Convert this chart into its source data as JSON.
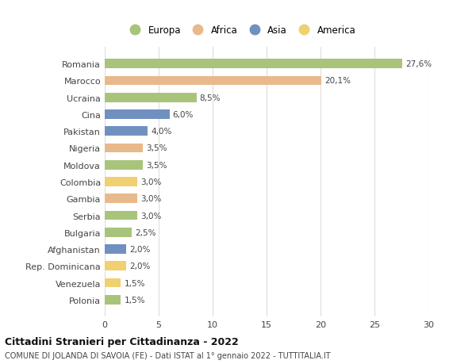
{
  "categories": [
    "Polonia",
    "Venezuela",
    "Rep. Dominicana",
    "Afghanistan",
    "Bulgaria",
    "Serbia",
    "Gambia",
    "Colombia",
    "Moldova",
    "Nigeria",
    "Pakistan",
    "Cina",
    "Ucraina",
    "Marocco",
    "Romania"
  ],
  "values": [
    1.5,
    1.5,
    2.0,
    2.0,
    2.5,
    3.0,
    3.0,
    3.0,
    3.5,
    3.5,
    4.0,
    6.0,
    8.5,
    20.1,
    27.6
  ],
  "labels": [
    "1,5%",
    "1,5%",
    "2,0%",
    "2,0%",
    "2,5%",
    "3,0%",
    "3,0%",
    "3,0%",
    "3,5%",
    "3,5%",
    "4,0%",
    "6,0%",
    "8,5%",
    "20,1%",
    "27,6%"
  ],
  "continents": [
    "Europa",
    "America",
    "America",
    "Asia",
    "Europa",
    "Europa",
    "Africa",
    "America",
    "Europa",
    "Africa",
    "Asia",
    "Asia",
    "Europa",
    "Africa",
    "Europa"
  ],
  "continent_colors": {
    "Europa": "#a8c47a",
    "Africa": "#e8b98a",
    "Asia": "#7090c0",
    "America": "#f0d070"
  },
  "legend_order": [
    "Europa",
    "Africa",
    "Asia",
    "America"
  ],
  "title": "Cittadini Stranieri per Cittadinanza - 2022",
  "subtitle": "COMUNE DI JOLANDA DI SAVOIA (FE) - Dati ISTAT al 1° gennaio 2022 - TUTTITALIA.IT",
  "xlim": [
    0,
    30
  ],
  "xticks": [
    0,
    5,
    10,
    15,
    20,
    25,
    30
  ],
  "bg_color": "#ffffff",
  "grid_color": "#dddddd",
  "bar_height": 0.55
}
